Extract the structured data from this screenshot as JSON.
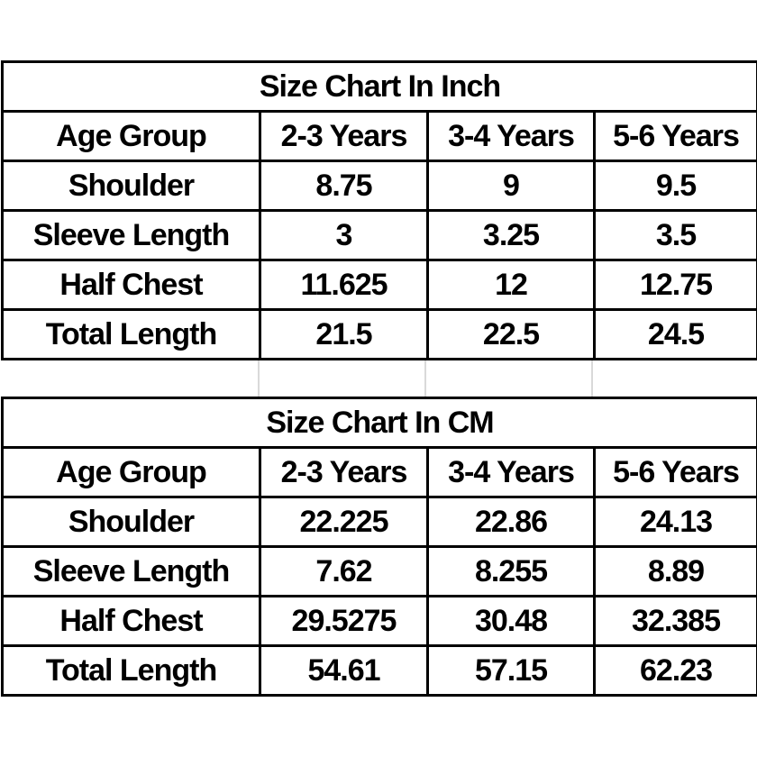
{
  "page": {
    "background_color": "#ffffff",
    "table_border_color": "#000000",
    "text_color": "#000000",
    "gap_gridline_color": "#d9d9d9"
  },
  "chart_data": [
    {
      "type": "table",
      "title": "Size Chart In Inch",
      "columns": [
        "Age Group",
        "2-3 Years",
        "3-4 Years",
        "5-6 Years"
      ],
      "rows": [
        {
          "label": "Shoulder",
          "values": [
            "8.75",
            "9",
            "9.5"
          ]
        },
        {
          "label": "Sleeve Length",
          "values": [
            "3",
            "3.25",
            "3.5"
          ]
        },
        {
          "label": "Half Chest",
          "values": [
            "11.625",
            "12",
            "12.75"
          ]
        },
        {
          "label": "Total Length",
          "values": [
            "21.5",
            "22.5",
            "24.5"
          ]
        }
      ]
    },
    {
      "type": "table",
      "title": "Size Chart In CM",
      "columns": [
        "Age Group",
        "2-3 Years",
        "3-4 Years",
        "5-6 Years"
      ],
      "rows": [
        {
          "label": "Shoulder",
          "values": [
            "22.225",
            "22.86",
            "24.13"
          ]
        },
        {
          "label": "Sleeve Length",
          "values": [
            "7.62",
            "8.255",
            "8.89"
          ]
        },
        {
          "label": "Half Chest",
          "values": [
            "29.5275",
            "30.48",
            "32.385"
          ]
        },
        {
          "label": "Total Length",
          "values": [
            "54.61",
            "57.15",
            "62.23"
          ]
        }
      ]
    }
  ]
}
